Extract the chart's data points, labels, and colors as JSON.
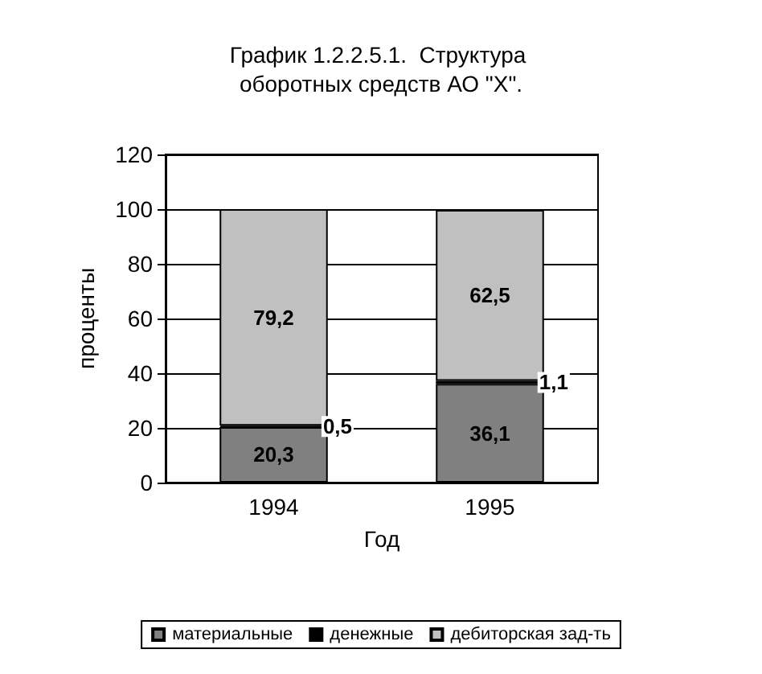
{
  "chart_data": {
    "type": "bar",
    "title": "График 1.2.2.5.1.  Структура оборотных средств АО \"Х\".",
    "xlabel": "Год",
    "ylabel": "проценты",
    "categories": [
      "1994",
      "1995"
    ],
    "stacked": true,
    "series": [
      {
        "name": "материальные",
        "color": "#808080",
        "values": [
          20.3,
          36.1
        ],
        "value_labels": [
          "20,3",
          "36,1"
        ]
      },
      {
        "name": "денежные",
        "color": "#000000",
        "values": [
          0.5,
          1.1
        ],
        "value_labels": [
          "0,5",
          "1,1"
        ]
      },
      {
        "name": "дебиторская зад-ть",
        "color": "#c0c0c0",
        "values": [
          79.2,
          62.5
        ],
        "value_labels": [
          "79,2",
          "62,5"
        ]
      }
    ],
    "ylim": [
      0,
      120
    ],
    "yticks": [
      0,
      20,
      40,
      60,
      80,
      100,
      120
    ],
    "grid": "y",
    "legend": "bottom"
  }
}
